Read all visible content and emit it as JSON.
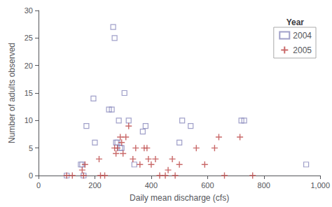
{
  "chart_data": {
    "type": "scatter",
    "xlabel": "Daily mean discharge (cfs)",
    "ylabel": "Number of adults observed",
    "legend_title": "Year",
    "series": [
      {
        "name": "2004",
        "color": "#8888bb",
        "marker": "square",
        "x": [
          100,
          150,
          155,
          160,
          170,
          195,
          200,
          250,
          260,
          265,
          270,
          275,
          280,
          285,
          290,
          295,
          305,
          320,
          340,
          370,
          380,
          500,
          510,
          540,
          720,
          730,
          950
        ],
        "values": [
          0,
          2,
          2,
          0,
          9,
          14,
          6,
          12,
          12,
          27,
          25,
          6,
          6,
          10,
          5,
          5,
          15,
          10,
          2,
          8,
          9,
          6,
          10,
          9,
          10,
          10,
          2
        ]
      },
      {
        "name": "2005",
        "color": "#bb4444",
        "marker": "plus",
        "x": [
          100,
          120,
          155,
          160,
          165,
          215,
          220,
          235,
          270,
          275,
          280,
          290,
          295,
          300,
          310,
          320,
          335,
          345,
          360,
          375,
          385,
          390,
          400,
          415,
          430,
          450,
          460,
          475,
          485,
          500,
          560,
          590,
          625,
          640,
          660,
          715,
          760
        ],
        "values": [
          0,
          0,
          1,
          0,
          2,
          3,
          0,
          0,
          5,
          4,
          5,
          7,
          6,
          4,
          7,
          9,
          3,
          5,
          2,
          5,
          5,
          3,
          2,
          3,
          0,
          0,
          1,
          3,
          0,
          2,
          5,
          2,
          5,
          7,
          0,
          7,
          0
        ]
      }
    ],
    "xlim": [
      0,
      1000
    ],
    "xticks": [
      0,
      200,
      400,
      600,
      800,
      1000
    ],
    "ylim": [
      0,
      30
    ],
    "yticks": [
      0,
      5,
      10,
      15,
      20,
      25,
      30
    ],
    "grid": false,
    "legend": "upper right"
  }
}
